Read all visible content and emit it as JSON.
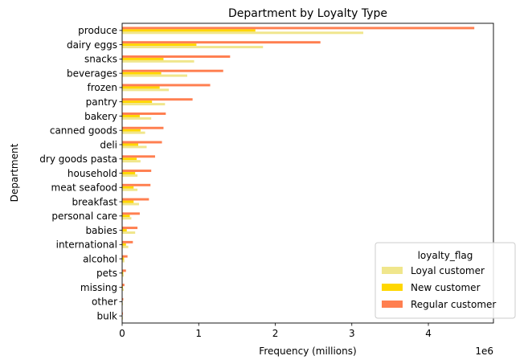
{
  "chart_data": {
    "type": "bar",
    "orientation": "horizontal",
    "title": "Department by Loyalty Type",
    "xlabel": "Frequency (millions)",
    "ylabel": "Department",
    "x_offset_label": "1e6",
    "xlim": [
      0,
      4850000
    ],
    "xticks": [
      0,
      1000000,
      2000000,
      3000000,
      4000000
    ],
    "xtick_labels": [
      "0",
      "1",
      "2",
      "3",
      "4"
    ],
    "grid": false,
    "legend_position": "lower-right",
    "legend_title": "loyalty_flag",
    "categories": [
      "produce",
      "dairy eggs",
      "snacks",
      "beverages",
      "frozen",
      "pantry",
      "bakery",
      "canned goods",
      "deli",
      "dry goods pasta",
      "household",
      "meat seafood",
      "breakfast",
      "personal care",
      "babies",
      "international",
      "alcohol",
      "pets",
      "missing",
      "other",
      "bulk"
    ],
    "series": [
      {
        "name": "Loyal customer",
        "color": "#f0e68c",
        "values": [
          3150000,
          1840000,
          940000,
          850000,
          610000,
          560000,
          380000,
          300000,
          320000,
          240000,
          200000,
          200000,
          220000,
          120000,
          170000,
          80000,
          30000,
          20000,
          20000,
          10000,
          10000
        ]
      },
      {
        "name": "New customer",
        "color": "#ffd700",
        "values": [
          1740000,
          970000,
          540000,
          510000,
          490000,
          390000,
          230000,
          240000,
          210000,
          190000,
          170000,
          150000,
          150000,
          100000,
          60000,
          50000,
          25000,
          15000,
          10000,
          5000,
          4000
        ]
      },
      {
        "name": "Regular customer",
        "color": "#ff7f50",
        "values": [
          4600000,
          2590000,
          1410000,
          1320000,
          1150000,
          920000,
          570000,
          540000,
          520000,
          430000,
          380000,
          370000,
          350000,
          230000,
          200000,
          140000,
          70000,
          50000,
          30000,
          15000,
          10000
        ]
      }
    ]
  }
}
